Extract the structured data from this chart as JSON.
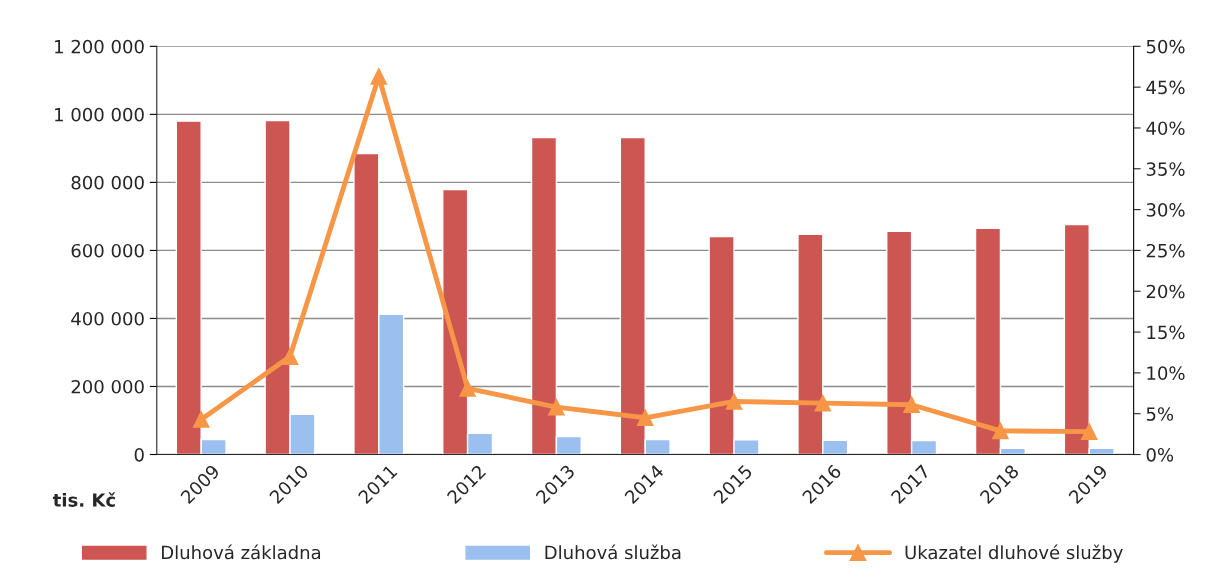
{
  "chart_data": {
    "type": "bar",
    "categories": [
      "2009",
      "2010",
      "2011",
      "2012",
      "2013",
      "2014",
      "2015",
      "2016",
      "2017",
      "2018",
      "2019"
    ],
    "series": [
      {
        "name": "Dluhová základna",
        "color": "#cd5652",
        "values": [
          980000,
          982000,
          885000,
          779000,
          932000,
          932000,
          641000,
          647000,
          656000,
          665000,
          676000
        ]
      },
      {
        "name": "Dluhová služba",
        "color": "#9bbfef",
        "values": [
          44000,
          118000,
          412000,
          62000,
          53000,
          44000,
          43000,
          42000,
          41000,
          18000,
          18000
        ]
      },
      {
        "name": "Ukazatel dluhové služby",
        "type": "line",
        "axis": "y2",
        "color": "#f79646",
        "marker": "triangle",
        "values": [
          4.3,
          12,
          46.3,
          8.1,
          5.8,
          4.5,
          6.5,
          6.3,
          6.1,
          2.9,
          2.8
        ]
      }
    ],
    "ylim": [
      0,
      1200000
    ],
    "yticks": [
      {
        "value": 0,
        "label": "0"
      },
      {
        "value": 200000,
        "label": "200 000"
      },
      {
        "value": 400000,
        "label": "400 000"
      },
      {
        "value": 600000,
        "label": "600 000"
      },
      {
        "value": 800000,
        "label": "800 000"
      },
      {
        "value": 1000000,
        "label": "1 000 000"
      },
      {
        "value": 1200000,
        "label": "1 200 000"
      }
    ],
    "y2lim": [
      0,
      50
    ],
    "y2ticks": [
      {
        "value": 0,
        "label": "0%"
      },
      {
        "value": 5,
        "label": "5%"
      },
      {
        "value": 10,
        "label": "10%"
      },
      {
        "value": 15,
        "label": "15%"
      },
      {
        "value": 20,
        "label": "20%"
      },
      {
        "value": 25,
        "label": "25%"
      },
      {
        "value": 30,
        "label": "30%"
      },
      {
        "value": 35,
        "label": "35%"
      },
      {
        "value": 40,
        "label": "40%"
      },
      {
        "value": 45,
        "label": "45%"
      },
      {
        "value": 50,
        "label": "50%"
      }
    ],
    "grid": "y",
    "legend": "bottom",
    "annotations": [
      "tis. Kč"
    ]
  }
}
